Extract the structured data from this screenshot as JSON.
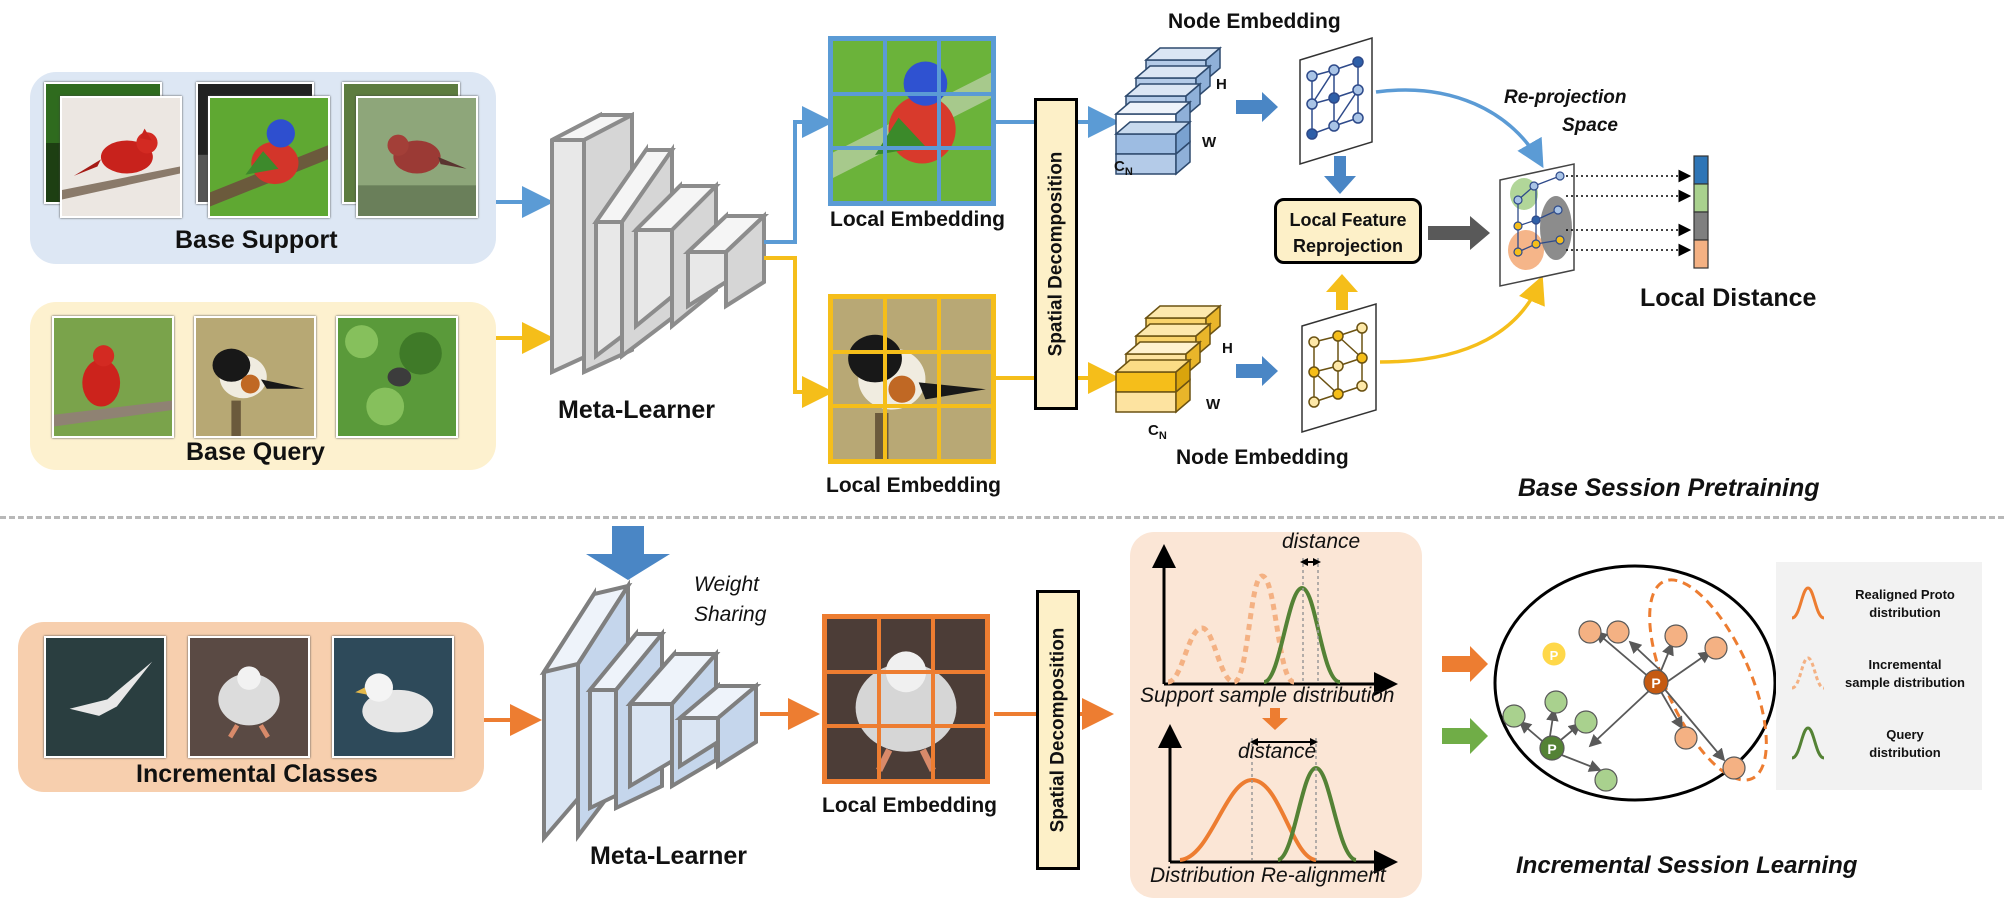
{
  "colors": {
    "support_panel": "#dde7f4",
    "query_panel": "#fdf1cf",
    "incremental_panel": "#f7cfae",
    "blue_arrow": "#5b9bd5",
    "yellow_arrow": "#f5be1a",
    "orange_arrow": "#ed7d31",
    "green": "#548235",
    "distribution_panel": "#fbe6d6",
    "legend_panel": "#f2f2f2"
  },
  "top": {
    "base_support": "Base Support",
    "base_query": "Base Query",
    "meta_learner": "Meta-Learner",
    "local_embedding_support": "Local Embedding",
    "local_embedding_query": "Local Embedding",
    "spatial_decomposition": "Spatial Decomposition",
    "node_embedding_top": "Node Embedding",
    "node_embedding_bottom": "Node Embedding",
    "dim_h": "H",
    "dim_w": "W",
    "dim_c": "C",
    "dim_c_sub": "N",
    "local_feature_reprojection_line1": "Local Feature",
    "local_feature_reprojection_line2": "Reprojection",
    "reprojection_space_line1": "Re-projection",
    "reprojection_space_line2": "Space",
    "local_distance": "Local Distance",
    "stage_title": "Base Session Pretraining",
    "distance_bar_colors": [
      "#2e75b6",
      "#a9d18e",
      "#7f7f7f",
      "#f4b183"
    ]
  },
  "bottom": {
    "incremental_classes": "Incremental Classes",
    "meta_learner": "Meta-Learner",
    "weight_sharing_line1": "Weight",
    "weight_sharing_line2": "Sharing",
    "local_embedding": "Local Embedding",
    "spatial_decomposition": "Spatial Decomposition",
    "distance_top": "distance",
    "support_sample_distribution": "Support sample distribution",
    "distance_bottom": "distance",
    "distribution_realignment": "Distribution Re-alignment",
    "node_p": "P",
    "stage_title": "Incremental Session Learning",
    "legend": [
      {
        "icon": "realigned-proto-icon",
        "line1": "Realigned Proto",
        "line2": "distribution"
      },
      {
        "icon": "incremental-sample-icon",
        "line1": "Incremental",
        "line2": "sample distribution"
      },
      {
        "icon": "query-distribution-icon",
        "line1": "Query",
        "line2": "distribution"
      }
    ]
  }
}
